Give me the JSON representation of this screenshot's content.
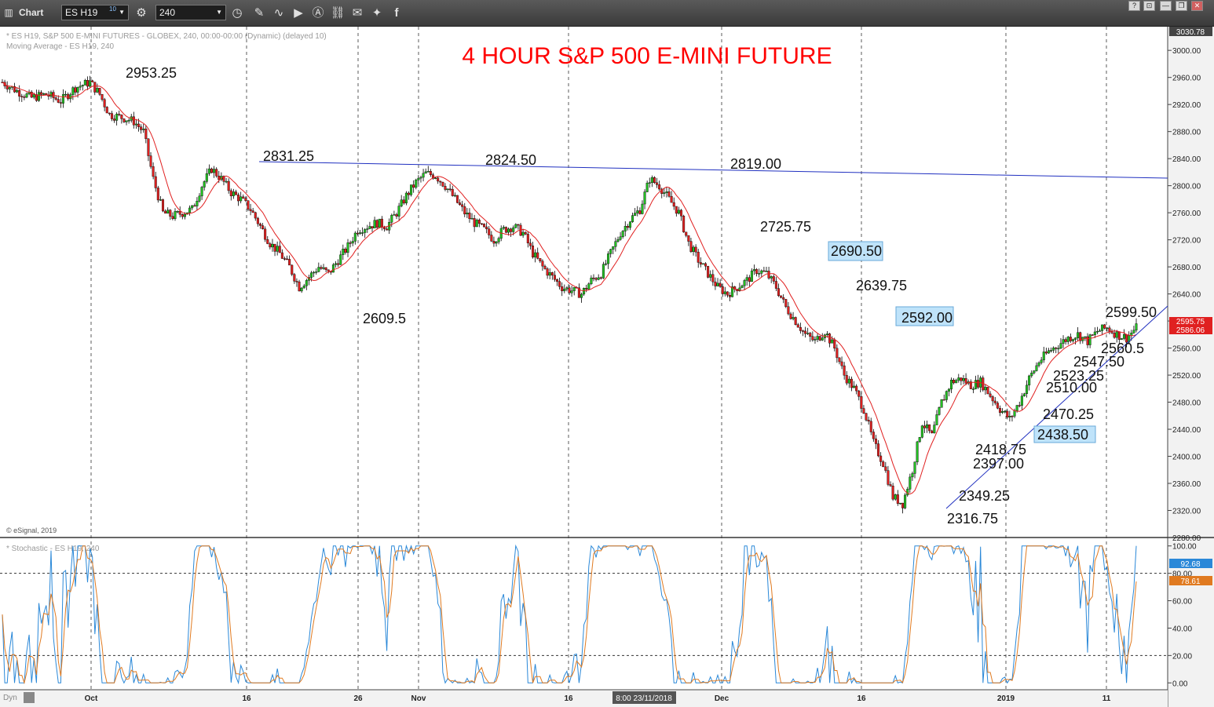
{
  "toolbar": {
    "window_label": "Chart",
    "symbol": "ES H19",
    "symbol_badge": "10",
    "interval": "240"
  },
  "window_buttons": [
    "?",
    "⊡",
    "—",
    "❐",
    "✕"
  ],
  "header": {
    "line1": "* ES H19, S&P 500 E-MINI FUTURES - GLOBEX, 240, 00:00-00:00 (Dynamic) (delayed 10)",
    "line2": "Moving Average - ES H19, 240",
    "copyright": "© eSignal, 2019",
    "stoch_label": "* Stochastic - ES H19, 240",
    "bottom_left": "Dyn"
  },
  "chart_data": {
    "type": "candlestick",
    "title": "4 HOUR  S&P 500 E-MINI FUTURE",
    "y_ticks": [
      "2280.00",
      "2320.00",
      "2360.00",
      "2400.00",
      "2440.00",
      "2480.00",
      "2520.00",
      "2560.00",
      "2600.00",
      "2640.00",
      "2680.00",
      "2720.00",
      "2760.00",
      "2800.00",
      "2840.00",
      "2880.00",
      "2920.00",
      "2960.00",
      "3000.00"
    ],
    "ylim": [
      2280,
      3035
    ],
    "y_top_label": "3030.78",
    "x_ticks": [
      "Oct",
      "16",
      "26",
      "Nov",
      "16",
      "Dec",
      "16",
      "2019",
      "11"
    ],
    "crosshair_label": "8:00 23/11/2018",
    "price_badges": [
      "2595.75",
      "2586.06"
    ],
    "annotations": [
      "2953.25",
      "2831.25",
      "2824.50",
      "2819.00",
      "2725.75",
      "2690.50",
      "2639.75",
      "2609.5",
      "2592.00",
      "2599.50",
      "2560.5",
      "2547.50",
      "2523.25",
      "2510.00",
      "2470.25",
      "2438.50",
      "2418.75",
      "2397.00",
      "2349.25",
      "2316.75"
    ],
    "price_path": [
      [
        0,
        2953
      ],
      [
        6,
        2940
      ],
      [
        12,
        2930
      ],
      [
        18,
        2935
      ],
      [
        24,
        2925
      ],
      [
        30,
        2945
      ],
      [
        36,
        2953
      ],
      [
        40,
        2935
      ],
      [
        44,
        2905
      ],
      [
        50,
        2900
      ],
      [
        54,
        2895
      ],
      [
        58,
        2880
      ],
      [
        62,
        2810
      ],
      [
        66,
        2760
      ],
      [
        70,
        2755
      ],
      [
        74,
        2760
      ],
      [
        78,
        2765
      ],
      [
        82,
        2800
      ],
      [
        86,
        2825
      ],
      [
        90,
        2810
      ],
      [
        94,
        2790
      ],
      [
        98,
        2780
      ],
      [
        102,
        2765
      ],
      [
        106,
        2740
      ],
      [
        110,
        2715
      ],
      [
        114,
        2700
      ],
      [
        118,
        2680
      ],
      [
        122,
        2650
      ],
      [
        126,
        2665
      ],
      [
        130,
        2680
      ],
      [
        134,
        2670
      ],
      [
        138,
        2690
      ],
      [
        142,
        2710
      ],
      [
        146,
        2735
      ],
      [
        150,
        2740
      ],
      [
        154,
        2745
      ],
      [
        158,
        2740
      ],
      [
        162,
        2760
      ],
      [
        166,
        2785
      ],
      [
        170,
        2805
      ],
      [
        174,
        2818
      ],
      [
        178,
        2815
      ],
      [
        182,
        2800
      ],
      [
        186,
        2780
      ],
      [
        190,
        2760
      ],
      [
        194,
        2745
      ],
      [
        198,
        2735
      ],
      [
        202,
        2720
      ],
      [
        206,
        2735
      ],
      [
        210,
        2740
      ],
      [
        214,
        2730
      ],
      [
        218,
        2700
      ],
      [
        222,
        2680
      ],
      [
        226,
        2665
      ],
      [
        230,
        2650
      ],
      [
        234,
        2645
      ],
      [
        238,
        2640
      ],
      [
        242,
        2660
      ],
      [
        246,
        2670
      ],
      [
        250,
        2700
      ],
      [
        254,
        2730
      ],
      [
        258,
        2750
      ],
      [
        262,
        2765
      ],
      [
        266,
        2810
      ],
      [
        270,
        2800
      ],
      [
        274,
        2780
      ],
      [
        278,
        2760
      ],
      [
        282,
        2715
      ],
      [
        286,
        2690
      ],
      [
        290,
        2670
      ],
      [
        294,
        2650
      ],
      [
        298,
        2640
      ],
      [
        302,
        2650
      ],
      [
        306,
        2660
      ],
      [
        310,
        2675
      ],
      [
        314,
        2670
      ],
      [
        318,
        2650
      ],
      [
        322,
        2620
      ],
      [
        326,
        2600
      ],
      [
        330,
        2580
      ],
      [
        334,
        2570
      ],
      [
        338,
        2585
      ],
      [
        342,
        2560
      ],
      [
        346,
        2520
      ],
      [
        350,
        2500
      ],
      [
        354,
        2470
      ],
      [
        358,
        2420
      ],
      [
        362,
        2390
      ],
      [
        366,
        2340
      ],
      [
        370,
        2330
      ],
      [
        374,
        2380
      ],
      [
        378,
        2450
      ],
      [
        382,
        2430
      ],
      [
        386,
        2480
      ],
      [
        390,
        2510
      ],
      [
        394,
        2515
      ],
      [
        398,
        2505
      ],
      [
        402,
        2510
      ],
      [
        406,
        2490
      ],
      [
        410,
        2470
      ],
      [
        414,
        2455
      ],
      [
        418,
        2480
      ],
      [
        422,
        2515
      ],
      [
        426,
        2540
      ],
      [
        430,
        2555
      ],
      [
        434,
        2565
      ],
      [
        438,
        2575
      ],
      [
        442,
        2580
      ],
      [
        446,
        2570
      ],
      [
        450,
        2585
      ],
      [
        454,
        2590
      ],
      [
        458,
        2580
      ],
      [
        462,
        2575
      ],
      [
        466,
        2590
      ]
    ],
    "stochastic_ticks": [
      "0.00",
      "20.00",
      "40.00",
      "60.00",
      "80.00",
      "100.00"
    ],
    "stochastic_ylim": [
      -5,
      105
    ],
    "stochastic_labels": [
      "92.68",
      "78.61"
    ]
  }
}
